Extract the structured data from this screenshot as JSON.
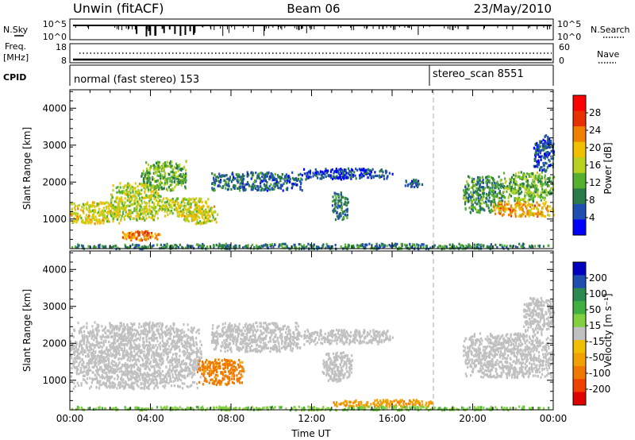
{
  "header": {
    "station": "Unwin (fitACF)",
    "beam": "Beam 06",
    "date": "23/May/2010"
  },
  "aux_panels": {
    "nsky_label": "N.Sky",
    "nsearch_label": "N.Search",
    "nsky_top": "10^5",
    "nsky_bottom": "10^0",
    "nsearch_top": "10^5",
    "nsearch_bottom": "10^0",
    "freq_label_1": "Freq.",
    "freq_label_2": "[MHz]",
    "freq_top": "18",
    "freq_bottom": "8",
    "nave_label": "Nave",
    "nave_top": "60",
    "nave_bottom": "0",
    "cpid_label": "CPID",
    "cpid_1": "normal (fast stereo) 153",
    "cpid_2": "stereo_scan 8551"
  },
  "colors": {
    "power": [
      "#0000ff",
      "#1e4fb0",
      "#2a7a4a",
      "#55b030",
      "#b8d020",
      "#f0c000",
      "#f08000",
      "#e83000",
      "#ff0000"
    ],
    "velocity": [
      "#e00000",
      "#f04000",
      "#f07800",
      "#f0a000",
      "#f0c000",
      "#c0c0c0",
      "#80d040",
      "#40b040",
      "#2a8a50",
      "#1e4fb0",
      "#0000c0"
    ],
    "ground_scatter": "#c0c0c0"
  },
  "chart_data": [
    {
      "type": "heatmap",
      "parameter": "power",
      "ylabel": "Slant Range [km]",
      "x_ticks": [
        "00:00",
        "04:00",
        "08:00",
        "12:00",
        "16:00",
        "20:00",
        "00:00"
      ],
      "y_ticks": [
        1000,
        2000,
        3000,
        4000
      ],
      "ylim": [
        200,
        4500
      ],
      "colorbar_label": "Power [dB]",
      "colorbar_ticks": [
        4,
        8,
        12,
        16,
        20,
        24,
        28
      ],
      "colorbar_range": [
        0,
        32
      ],
      "regions": [
        {
          "t0": 0.0,
          "t1": 2.5,
          "r0": 900,
          "r1": 1500,
          "value": 20
        },
        {
          "t0": 2.0,
          "t1": 4.5,
          "r0": 1000,
          "r1": 2000,
          "value": 18
        },
        {
          "t0": 3.5,
          "t1": 5.8,
          "r0": 1800,
          "r1": 2600,
          "value": 14
        },
        {
          "t0": 2.5,
          "t1": 4.5,
          "r0": 450,
          "r1": 700,
          "value": 26
        },
        {
          "t0": 4.5,
          "t1": 7.0,
          "r0": 1100,
          "r1": 1600,
          "value": 18
        },
        {
          "t0": 5.5,
          "t1": 7.3,
          "r0": 900,
          "r1": 1400,
          "value": 20
        },
        {
          "t0": 7.0,
          "t1": 11.5,
          "r0": 1800,
          "r1": 2300,
          "value": 8
        },
        {
          "t0": 11.5,
          "t1": 16.0,
          "r0": 2100,
          "r1": 2400,
          "value": 6
        },
        {
          "t0": 13.0,
          "t1": 13.8,
          "r0": 1000,
          "r1": 1800,
          "value": 10
        },
        {
          "t0": 16.5,
          "t1": 17.5,
          "r0": 1900,
          "r1": 2100,
          "value": 6
        },
        {
          "t0": 19.5,
          "t1": 21.5,
          "r0": 1200,
          "r1": 2200,
          "value": 12
        },
        {
          "t0": 21.0,
          "t1": 24.0,
          "r0": 1100,
          "r1": 1500,
          "value": 24
        },
        {
          "t0": 21.5,
          "t1": 24.0,
          "r0": 1500,
          "r1": 2300,
          "value": 14
        },
        {
          "t0": 23.0,
          "t1": 24.0,
          "r0": 2300,
          "r1": 3300,
          "value": 6
        },
        {
          "t0": 0.0,
          "t1": 24.0,
          "r0": 220,
          "r1": 360,
          "value": 10
        }
      ]
    },
    {
      "type": "heatmap",
      "parameter": "velocity",
      "ylabel": "Slant Range [km]",
      "xlabel": "Time UT",
      "x_ticks": [
        "00:00",
        "04:00",
        "08:00",
        "12:00",
        "16:00",
        "20:00",
        "00:00"
      ],
      "y_ticks": [
        1000,
        2000,
        3000,
        4000
      ],
      "ylim": [
        200,
        4500
      ],
      "colorbar_label": "Velocity [m s⁻¹]",
      "colorbar_ticks": [
        200,
        100,
        50,
        15,
        -15,
        -50,
        -100,
        -200
      ],
      "regions": [
        {
          "t0": 0.0,
          "t1": 6.5,
          "r0": 800,
          "r1": 2600,
          "value": 0
        },
        {
          "t0": 7.0,
          "t1": 11.5,
          "r0": 1800,
          "r1": 2600,
          "value": 0
        },
        {
          "t0": 11.5,
          "t1": 16.0,
          "r0": 2000,
          "r1": 2400,
          "value": 0
        },
        {
          "t0": 12.5,
          "t1": 14.0,
          "r0": 1000,
          "r1": 1800,
          "value": 0
        },
        {
          "t0": 6.3,
          "t1": 8.6,
          "r0": 900,
          "r1": 1600,
          "value": -60
        },
        {
          "t0": 19.5,
          "t1": 24.0,
          "r0": 1100,
          "r1": 2300,
          "value": 0
        },
        {
          "t0": 22.5,
          "t1": 24.0,
          "r0": 2300,
          "r1": 3300,
          "value": 0
        },
        {
          "t0": 13.0,
          "t1": 18.0,
          "r0": 300,
          "r1": 500,
          "value": -40
        },
        {
          "t0": 0.0,
          "t1": 24.0,
          "r0": 220,
          "r1": 320,
          "value": 40
        }
      ]
    }
  ]
}
